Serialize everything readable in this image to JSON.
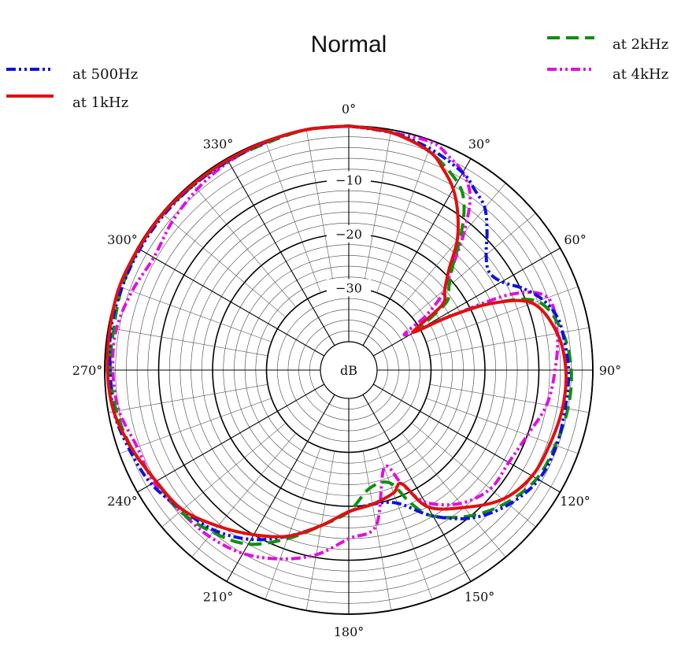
{
  "chart_data": {
    "type": "line",
    "subtype": "polar",
    "title": "Normal",
    "radial_unit_label": "dB",
    "radial_range": [
      -40,
      0
    ],
    "radial_tick_labels": [
      "−10",
      "−20",
      "−30"
    ],
    "angle_tick_labels": [
      "0°",
      "30°",
      "60°",
      "90°",
      "120°",
      "150°",
      "180°",
      "210°",
      "240°",
      "270°",
      "300°",
      "330°"
    ],
    "angle_direction": "clockwise",
    "zero_location": "top",
    "grid": true,
    "legend_placement": "top-left and top-right",
    "series": [
      {
        "name": "at 500Hz",
        "color": "#1010e0",
        "dash": "dash-dot-dot",
        "angles": [
          0,
          10,
          20,
          30,
          35,
          40,
          45,
          50,
          55,
          60,
          65,
          70,
          75,
          80,
          90,
          100,
          110,
          120,
          130,
          140,
          150,
          160,
          170,
          180,
          190,
          200,
          210,
          220,
          230,
          240,
          250,
          260,
          270,
          280,
          290,
          300,
          310,
          320,
          330,
          340,
          350,
          360
        ],
        "values": [
          0,
          -0.5,
          -1.5,
          -3,
          -4.5,
          -6,
          -9,
          -12,
          -13.5,
          -12.5,
          -9.5,
          -7,
          -5.5,
          -5,
          -4.5,
          -4.5,
          -4.3,
          -4.6,
          -6.5,
          -9.5,
          -14,
          -19,
          -20,
          -19,
          -16,
          -12.5,
          -9,
          -6.5,
          -5,
          -3,
          -2,
          -1,
          -1,
          -0.5,
          -0.5,
          -0.5,
          -0.5,
          -0.5,
          -0.5,
          -0.3,
          0,
          0
        ]
      },
      {
        "name": "at 1kHz",
        "color": "#e01010",
        "dash": "solid",
        "angles": [
          0,
          10,
          20,
          25,
          30,
          35,
          40,
          45,
          50,
          55,
          58,
          60,
          62,
          65,
          70,
          80,
          90,
          100,
          110,
          120,
          130,
          140,
          150,
          155,
          160,
          170,
          180,
          190,
          200,
          210,
          220,
          230,
          240,
          250,
          260,
          270,
          280,
          290,
          300,
          310,
          320,
          330,
          340,
          350,
          360
        ],
        "values": [
          0,
          -0.5,
          -2,
          -4,
          -6.5,
          -10,
          -14,
          -19,
          -22,
          -24,
          -30,
          -31,
          -24,
          -16,
          -9,
          -6,
          -5,
          -5,
          -5.5,
          -6,
          -8,
          -12,
          -16,
          -22,
          -21,
          -20,
          -19,
          -16,
          -12.5,
          -10,
          -7.5,
          -5,
          -4,
          -2.5,
          -1,
          -0.5,
          -0.3,
          0,
          -0.2,
          -0.2,
          -0.3,
          -0.3,
          -0.2,
          0,
          0
        ]
      },
      {
        "name": "at 2kHz",
        "color": "#109010",
        "dash": "dashed",
        "angles": [
          0,
          10,
          20,
          30,
          35,
          40,
          45,
          50,
          55,
          58,
          60,
          62,
          65,
          70,
          80,
          90,
          100,
          110,
          120,
          130,
          140,
          150,
          155,
          160,
          170,
          180,
          190,
          200,
          210,
          220,
          230,
          240,
          250,
          260,
          270,
          280,
          290,
          300,
          310,
          320,
          330,
          340,
          350,
          360
        ],
        "values": [
          0,
          -0.5,
          -2,
          -5,
          -8,
          -13,
          -18,
          -21,
          -23,
          -28,
          -30,
          -24,
          -16,
          -8,
          -5,
          -4,
          -4,
          -4.5,
          -5,
          -7,
          -10,
          -14,
          -18,
          -23,
          -23,
          -19,
          -16,
          -12,
          -8,
          -6,
          -4.5,
          -4,
          -2.5,
          -1.5,
          -1,
          -1,
          -0.5,
          -0.3,
          -0.3,
          -0.5,
          -0.5,
          -0.5,
          0,
          0
        ]
      },
      {
        "name": "at 4kHz",
        "color": "#e010e0",
        "dash": "dash-dot-dot",
        "angles": [
          0,
          10,
          20,
          25,
          30,
          35,
          40,
          45,
          50,
          52,
          55,
          58,
          62,
          65,
          70,
          80,
          90,
          100,
          110,
          120,
          130,
          140,
          150,
          155,
          160,
          170,
          180,
          190,
          200,
          210,
          220,
          230,
          240,
          250,
          260,
          270,
          280,
          290,
          300,
          310,
          320,
          330,
          340,
          350,
          360
        ],
        "values": [
          0,
          -0.5,
          -0.3,
          -1.5,
          -3,
          -6,
          -12,
          -18,
          -22,
          -24,
          -28,
          -33,
          -24,
          -12,
          -6,
          -6,
          -7,
          -8,
          -10,
          -11,
          -11,
          -13,
          -17,
          -22,
          -26,
          -16,
          -14,
          -10.5,
          -8,
          -6,
          -5,
          -4.5,
          -3.5,
          -3.5,
          -2,
          -1.5,
          -1.5,
          -2.5,
          -3.5,
          -2.5,
          -1.5,
          -0.7,
          -0.3,
          0,
          0
        ]
      }
    ]
  }
}
